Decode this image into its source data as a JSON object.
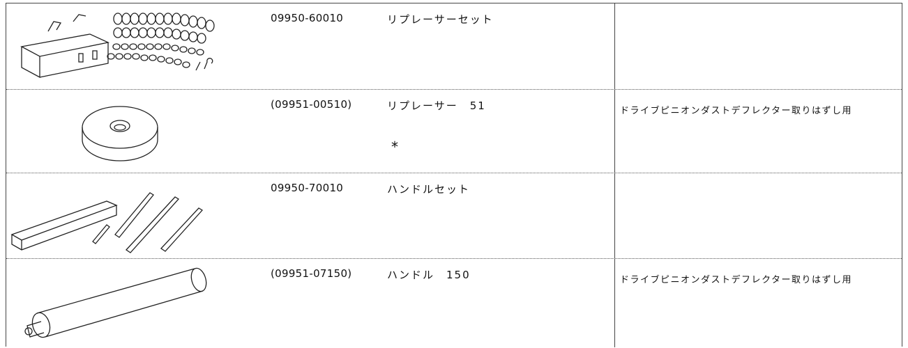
{
  "table": {
    "rows": [
      {
        "part_number": "09950-60010",
        "name": "リプレーサーセット"
      },
      {
        "part_number": "(09951-00510)",
        "name": "リプレーサー　51",
        "mark": "*",
        "note": "ドライブピニオンダストデフレクター取りはずし用"
      },
      {
        "part_number": "09950-70010",
        "name": "ハンドルセット"
      },
      {
        "part_number": "(09951-07150)",
        "name": "ハンドル　150",
        "note": "ドライブピニオンダストデフレクター取りはずし用"
      }
    ]
  }
}
